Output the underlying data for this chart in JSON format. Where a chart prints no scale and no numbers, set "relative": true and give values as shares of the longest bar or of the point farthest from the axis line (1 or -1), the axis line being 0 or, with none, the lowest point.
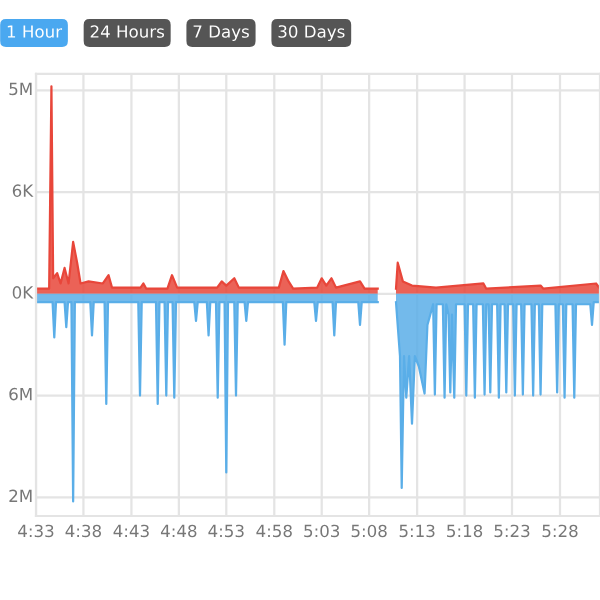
{
  "chart_data": {
    "type": "area",
    "relative": true,
    "annotations": [
      "1 Hour",
      "24 Hours",
      "7 Days",
      "30 Days",
      "5M",
      "6K",
      "0K",
      "6M",
      "2M"
    ],
    "xlim": [
      4.55,
      5.537
    ],
    "xticks": [
      {
        "value": 4.55,
        "label": "4:33"
      },
      {
        "value": 4.633,
        "label": "4:38"
      },
      {
        "value": 4.717,
        "label": "4:43"
      },
      {
        "value": 4.8,
        "label": "4:48"
      },
      {
        "value": 4.883,
        "label": "4:53"
      },
      {
        "value": 4.967,
        "label": "4:58"
      },
      {
        "value": 5.05,
        "label": "5:03"
      },
      {
        "value": 5.133,
        "label": "5:08"
      },
      {
        "value": 5.217,
        "label": "5:13"
      },
      {
        "value": 5.3,
        "label": "5:18"
      },
      {
        "value": 5.383,
        "label": "5:23"
      },
      {
        "value": 5.467,
        "label": "5:28"
      }
    ],
    "grid": true,
    "series": [
      {
        "color": "#e8463a",
        "x": [
          4.55,
          4.573,
          4.577,
          4.58,
          4.587,
          4.593,
          4.6,
          4.607,
          4.615,
          4.622,
          4.628,
          4.642,
          4.667,
          4.677,
          4.683,
          4.733,
          4.738,
          4.743,
          4.78,
          4.788,
          4.797,
          4.867,
          4.875,
          4.883,
          4.897,
          4.905,
          4.975,
          4.983,
          4.992,
          5.0,
          5.042,
          5.05,
          5.058,
          5.067,
          5.075,
          5.117,
          5.125,
          5.148,
          5.16,
          5.18,
          5.183,
          5.192,
          5.208,
          5.25,
          5.333,
          5.338,
          5.433,
          5.438,
          5.53,
          5.537
        ],
        "values": [
          0.025,
          0.025,
          1,
          0.075,
          0.1,
          0.05,
          0.125,
          0.05,
          0.25,
          0.15,
          0.05,
          0.06,
          0.05,
          0.09,
          0.03,
          0.03,
          0.05,
          0.025,
          0.025,
          0.09,
          0.03,
          0.03,
          0.06,
          0.04,
          0.075,
          0.03,
          0.03,
          0.11,
          0.06,
          0.025,
          0.03,
          0.075,
          0.04,
          0.075,
          0.03,
          0.06,
          0.025,
          0.025,
          null,
          0.025,
          0.15,
          0.06,
          0.04,
          0.03,
          0.05,
          0.025,
          0.04,
          0.025,
          0.05,
          0.025
        ]
      },
      {
        "color": "#5aaee8",
        "x": [
          4.55,
          4.579,
          4.582,
          4.585,
          4.6,
          4.603,
          4.606,
          4.612,
          4.615,
          4.618,
          4.645,
          4.648,
          4.651,
          4.67,
          4.673,
          4.676,
          4.729,
          4.732,
          4.735,
          4.76,
          4.763,
          4.766,
          4.775,
          4.778,
          4.781,
          4.789,
          4.792,
          4.795,
          4.827,
          4.83,
          4.833,
          4.849,
          4.852,
          4.855,
          4.865,
          4.868,
          4.871,
          4.88,
          4.883,
          4.886,
          4.897,
          4.9,
          4.903,
          4.915,
          4.918,
          4.921,
          4.982,
          4.985,
          4.988,
          5.037,
          5.04,
          5.043,
          5.069,
          5.072,
          5.075,
          5.114,
          5.117,
          5.12,
          5.148,
          5.16,
          5.18,
          5.187,
          5.19,
          5.194,
          5.198,
          5.203,
          5.208,
          5.213,
          5.22,
          5.23,
          5.235,
          5.245,
          5.248,
          5.251,
          5.262,
          5.265,
          5.268,
          5.272,
          5.275,
          5.278,
          5.282,
          5.285,
          5.3,
          5.303,
          5.306,
          5.315,
          5.318,
          5.321,
          5.332,
          5.335,
          5.338,
          5.342,
          5.345,
          5.348,
          5.357,
          5.36,
          5.363,
          5.37,
          5.373,
          5.376,
          5.385,
          5.388,
          5.391,
          5.399,
          5.402,
          5.405,
          5.417,
          5.42,
          5.423,
          5.43,
          5.433,
          5.436,
          5.459,
          5.462,
          5.465,
          5.472,
          5.475,
          5.478,
          5.489,
          5.492,
          5.495,
          5.52,
          5.523,
          5.526,
          5.537
        ],
        "values": [
          -0.04,
          -0.04,
          -0.21,
          -0.04,
          -0.04,
          -0.16,
          -0.04,
          -0.04,
          -1,
          -0.04,
          -0.04,
          -0.2,
          -0.04,
          -0.04,
          -0.53,
          -0.04,
          -0.04,
          -0.49,
          -0.04,
          -0.04,
          -0.53,
          -0.04,
          -0.04,
          -0.49,
          -0.04,
          -0.04,
          -0.5,
          -0.04,
          -0.04,
          -0.13,
          -0.04,
          -0.04,
          -0.2,
          -0.04,
          -0.04,
          -0.5,
          -0.04,
          -0.04,
          -0.86,
          -0.04,
          -0.04,
          -0.49,
          -0.04,
          -0.04,
          -0.13,
          -0.04,
          -0.04,
          -0.245,
          -0.04,
          -0.04,
          -0.13,
          -0.04,
          -0.04,
          -0.2,
          -0.04,
          -0.04,
          -0.15,
          -0.04,
          -0.04,
          null,
          -0.04,
          -0.3,
          -0.935,
          -0.3,
          -0.5,
          -0.3,
          -0.625,
          -0.3,
          -0.35,
          -0.48,
          -0.15,
          -0.05,
          -0.485,
          -0.05,
          -0.05,
          -0.5,
          -0.05,
          -0.1,
          -0.475,
          -0.1,
          -0.5,
          -0.05,
          -0.05,
          -0.49,
          -0.05,
          -0.05,
          -0.5,
          -0.05,
          -0.05,
          -0.485,
          -0.05,
          -0.05,
          -0.475,
          -0.05,
          -0.05,
          -0.5,
          -0.05,
          -0.05,
          -0.475,
          -0.05,
          -0.05,
          -0.49,
          -0.05,
          -0.05,
          -0.485,
          -0.05,
          -0.05,
          -0.49,
          -0.05,
          -0.05,
          -0.485,
          -0.05,
          -0.05,
          -0.475,
          -0.05,
          -0.05,
          -0.5,
          -0.05,
          -0.05,
          -0.5,
          -0.05,
          -0.05,
          -0.15,
          -0.04,
          -0.04
        ]
      }
    ]
  }
}
